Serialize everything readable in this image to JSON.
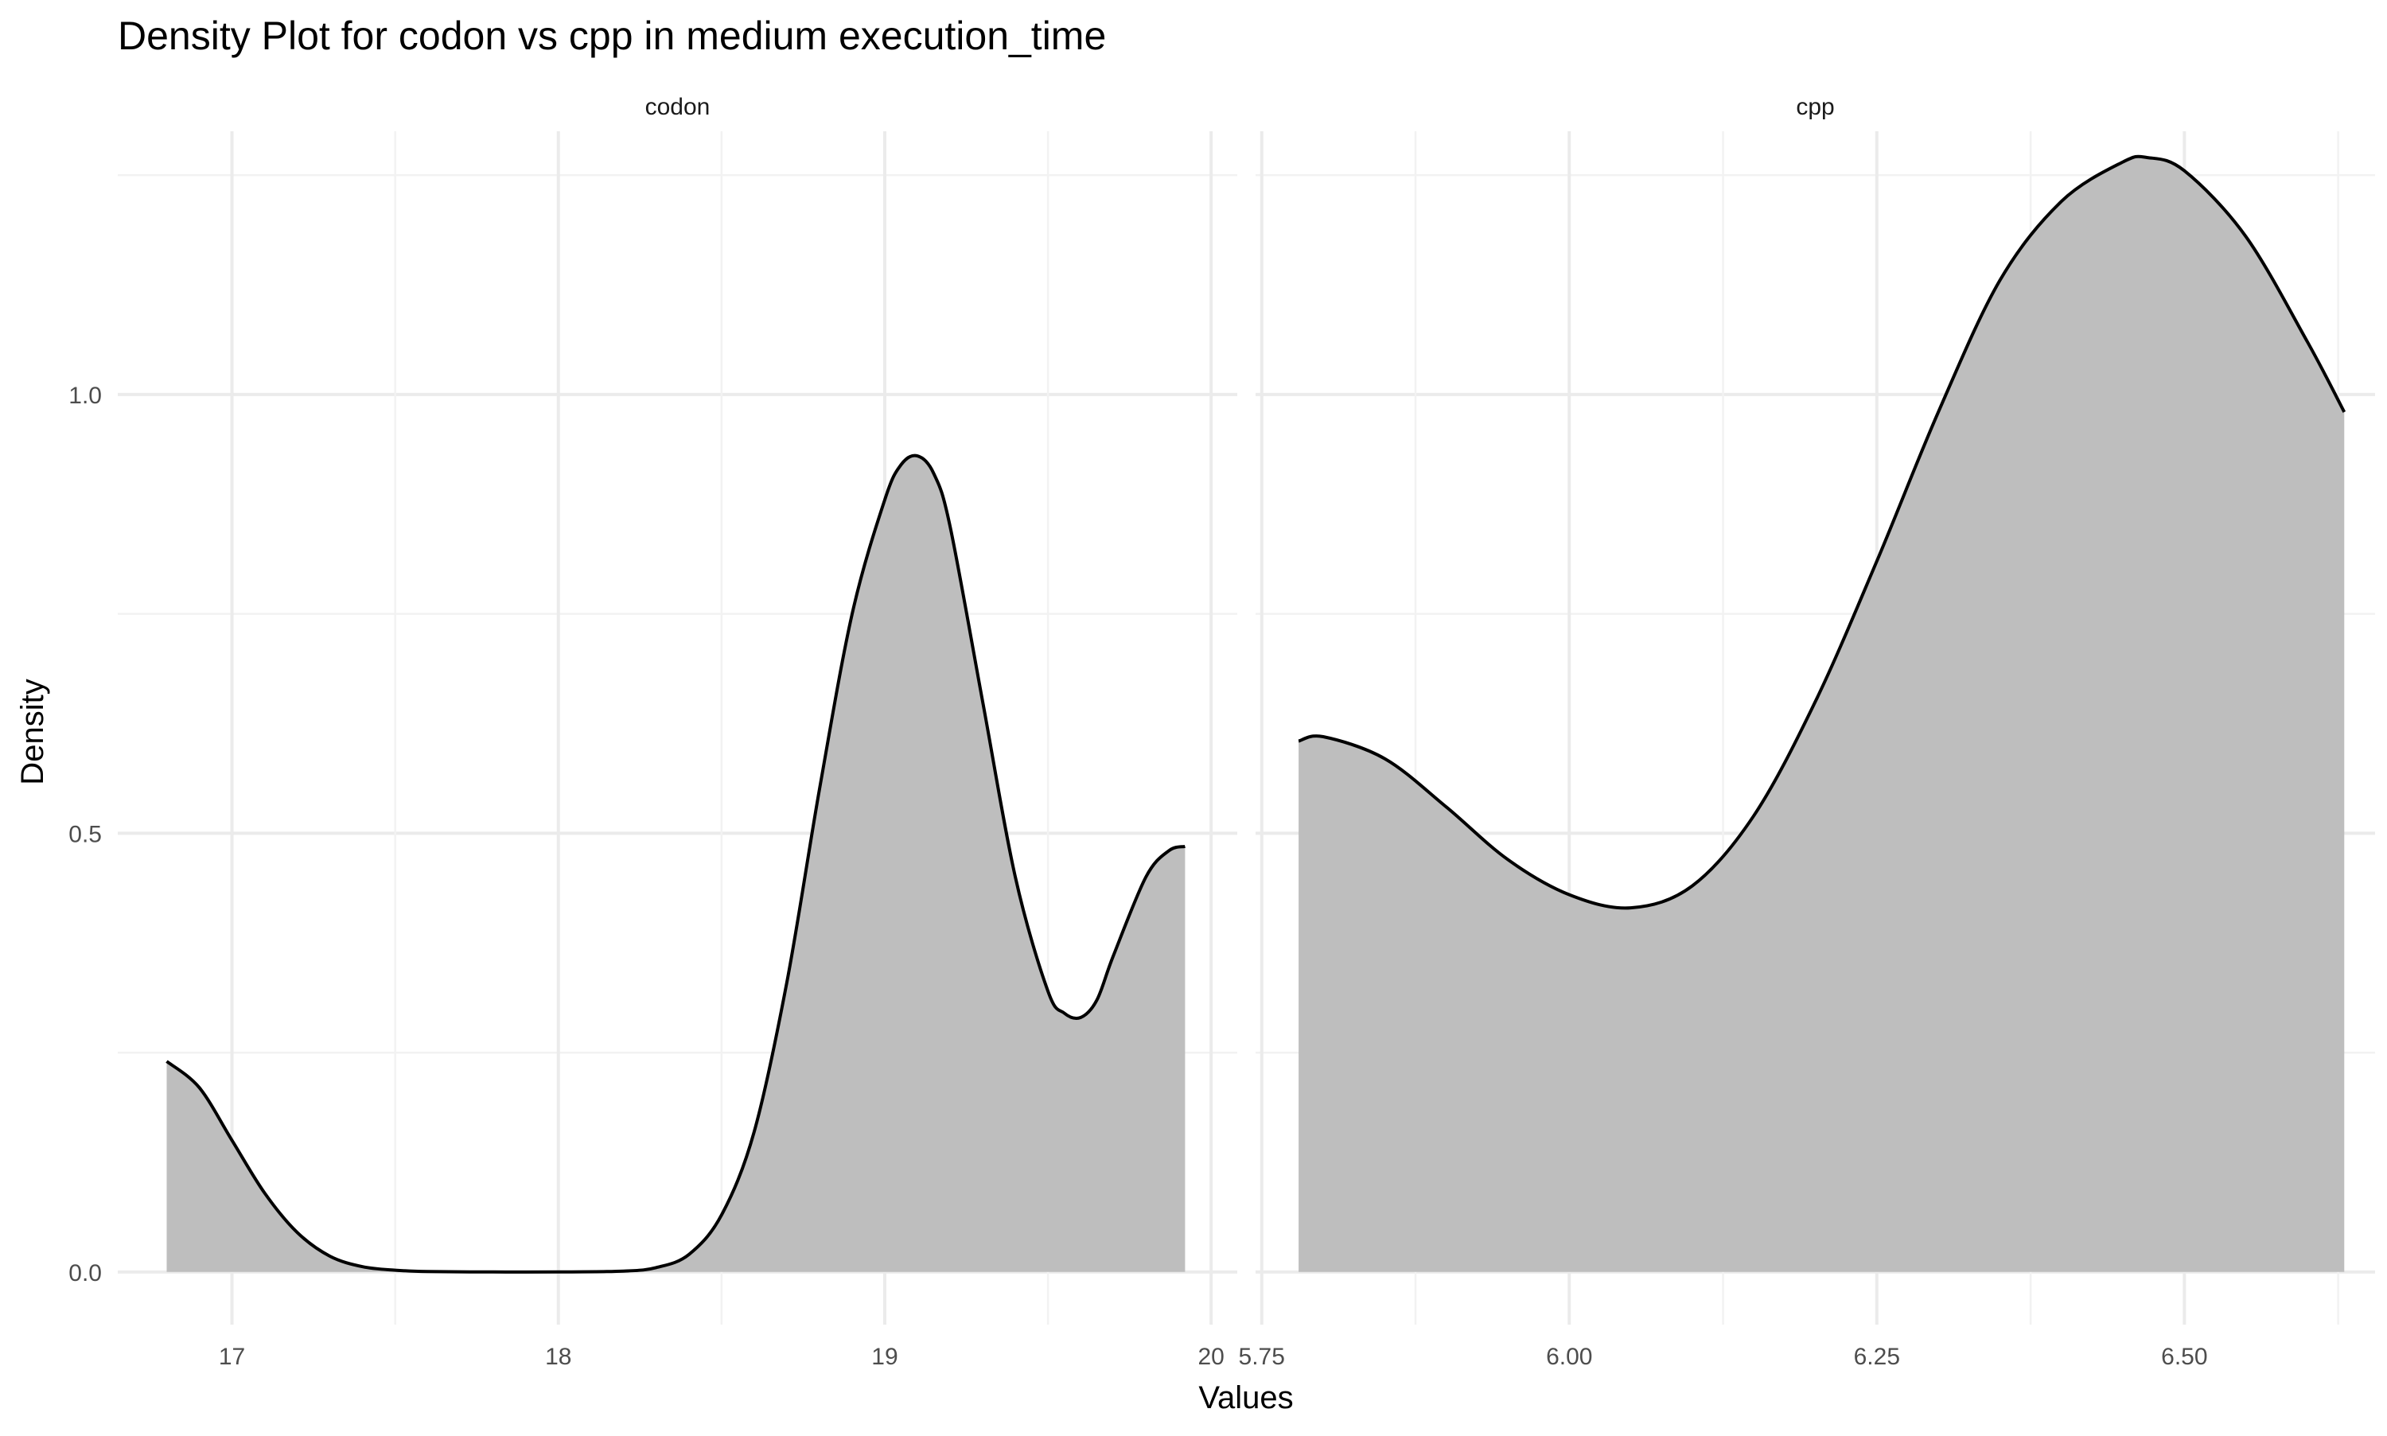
{
  "chart_data": {
    "type": "area",
    "title": "Density Plot for codon vs cpp in medium execution_time",
    "xlabel": "Values",
    "ylabel": "Density",
    "ylim": [
      -0.06,
      1.3
    ],
    "yticks": [
      0.0,
      0.5,
      1.0
    ],
    "ytick_labels": [
      "0.0",
      "0.5",
      "1.0"
    ],
    "grid": true,
    "fill_color": "#bebebe",
    "line_color": "#000000",
    "panels": [
      {
        "name": "codon",
        "xlim": [
          16.65,
          20.08
        ],
        "xticks": [
          17,
          18,
          19,
          20
        ],
        "xtick_labels": [
          "17",
          "18",
          "19",
          "20"
        ],
        "x": [
          16.8,
          16.9,
          17.0,
          17.1,
          17.2,
          17.3,
          17.4,
          17.5,
          17.6,
          17.8,
          18.0,
          18.2,
          18.3,
          18.4,
          18.5,
          18.6,
          18.7,
          18.8,
          18.9,
          19.0,
          19.05,
          19.1,
          19.15,
          19.2,
          19.3,
          19.4,
          19.5,
          19.55,
          19.6,
          19.65,
          19.7,
          19.8,
          19.87,
          19.92
        ],
        "y": [
          0.24,
          0.21,
          0.15,
          0.09,
          0.045,
          0.018,
          0.006,
          0.002,
          0.0005,
          0.0,
          0.0,
          0.001,
          0.005,
          0.02,
          0.065,
          0.16,
          0.33,
          0.55,
          0.75,
          0.88,
          0.92,
          0.93,
          0.91,
          0.85,
          0.65,
          0.45,
          0.32,
          0.295,
          0.29,
          0.31,
          0.36,
          0.45,
          0.48,
          0.485
        ]
      },
      {
        "name": "cpp",
        "xlim": [
          5.745,
          6.655
        ],
        "xticks": [
          5.75,
          6.0,
          6.25,
          6.5
        ],
        "xtick_labels": [
          "5.75",
          "6.00",
          "6.25",
          "6.50"
        ],
        "x": [
          5.78,
          5.8,
          5.85,
          5.9,
          5.95,
          6.0,
          6.05,
          6.1,
          6.15,
          6.2,
          6.25,
          6.3,
          6.35,
          6.4,
          6.45,
          6.47,
          6.5,
          6.55,
          6.6,
          6.63
        ],
        "y": [
          0.605,
          0.61,
          0.585,
          0.53,
          0.47,
          0.43,
          0.415,
          0.44,
          0.52,
          0.65,
          0.81,
          0.98,
          1.13,
          1.22,
          1.265,
          1.27,
          1.255,
          1.18,
          1.06,
          0.98
        ]
      }
    ]
  }
}
